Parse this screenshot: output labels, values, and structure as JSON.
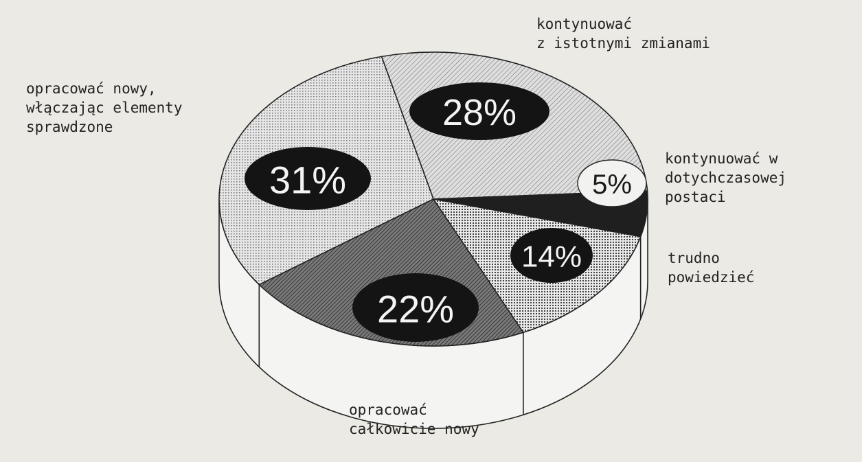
{
  "chart_data": {
    "type": "pie",
    "slices": [
      {
        "label": "kontynuować z istotnymi zmianami",
        "value": 28,
        "value_label": "28%",
        "lines": [
          "kontynuować",
          "z istotnymi zmianami"
        ],
        "pattern": "diag-light"
      },
      {
        "label": "kontynuować w dotychczasowej postaci",
        "value": 5,
        "value_label": "5%",
        "lines": [
          "kontynuować w",
          "dotychczasowej",
          "postaci"
        ],
        "pattern": "solid-dark"
      },
      {
        "label": "trudno powiedzieć",
        "value": 14,
        "value_label": "14%",
        "lines": [
          "trudno",
          "powiedzieć"
        ],
        "pattern": "dots"
      },
      {
        "label": "opracować całkowicie nowy",
        "value": 22,
        "value_label": "22%",
        "lines": [
          "opracować",
          "całkowicie nowy"
        ],
        "pattern": "diag-dark"
      },
      {
        "label": "opracować nowy, włączając elementy sprawdzone",
        "value": 31,
        "value_label": "31%",
        "lines": [
          "opracować nowy,",
          "włączając elementy",
          "sprawdzone"
        ],
        "pattern": "dots-light"
      }
    ]
  }
}
